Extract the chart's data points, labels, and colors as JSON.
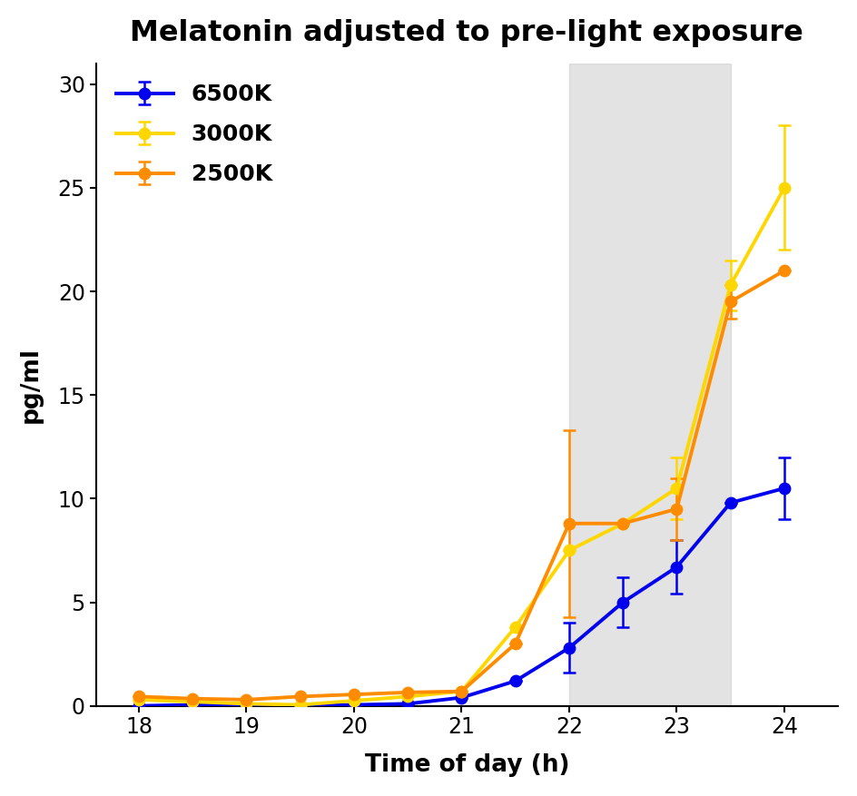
{
  "title": "Melatonin adjusted to pre-light exposure",
  "xlabel": "Time of day (h)",
  "ylabel": "pg/ml",
  "xlim": [
    17.6,
    24.5
  ],
  "ylim": [
    0,
    31
  ],
  "xticks": [
    18,
    19,
    20,
    21,
    22,
    23,
    24
  ],
  "yticks": [
    0,
    5,
    10,
    15,
    20,
    25,
    30
  ],
  "shaded_region": [
    22,
    23.5
  ],
  "series": {
    "6500K": {
      "color": "#0000EE",
      "x": [
        18,
        18.5,
        19,
        19.5,
        20,
        20.5,
        21,
        21.5,
        22,
        22.5,
        23,
        23.5,
        24
      ],
      "y": [
        0.0,
        0.05,
        0.05,
        0.0,
        0.05,
        0.1,
        0.4,
        1.2,
        2.8,
        5.0,
        6.7,
        9.8,
        10.5
      ],
      "yerr_lo": [
        0.0,
        0.0,
        0.0,
        0.0,
        0.0,
        0.0,
        0.0,
        0.0,
        1.2,
        1.2,
        1.3,
        0.0,
        1.5
      ],
      "yerr_hi": [
        0.0,
        0.0,
        0.0,
        0.0,
        0.0,
        0.0,
        0.0,
        0.0,
        1.2,
        1.2,
        1.3,
        0.0,
        1.5
      ]
    },
    "3000K": {
      "color": "#FFD700",
      "x": [
        18,
        18.5,
        19,
        19.5,
        20,
        20.5,
        21,
        21.5,
        22,
        22.5,
        23,
        23.5,
        24
      ],
      "y": [
        0.3,
        0.2,
        0.1,
        0.05,
        0.25,
        0.45,
        0.7,
        3.8,
        7.5,
        8.8,
        10.5,
        20.3,
        25.0
      ],
      "yerr_lo": [
        0.0,
        0.0,
        0.0,
        0.0,
        0.0,
        0.0,
        0.0,
        0.0,
        0.0,
        0.0,
        1.5,
        1.2,
        3.0
      ],
      "yerr_hi": [
        0.0,
        0.0,
        0.0,
        0.0,
        0.0,
        0.0,
        0.0,
        0.0,
        0.0,
        0.0,
        1.5,
        1.2,
        3.0
      ]
    },
    "2500K": {
      "color": "#FF8C00",
      "x": [
        18,
        18.5,
        19,
        19.5,
        20,
        20.5,
        21,
        21.5,
        22,
        22.5,
        23,
        23.5,
        24
      ],
      "y": [
        0.45,
        0.35,
        0.3,
        0.45,
        0.55,
        0.65,
        0.7,
        3.0,
        8.8,
        8.8,
        9.5,
        19.5,
        21.0
      ],
      "yerr_lo": [
        0.0,
        0.0,
        0.0,
        0.0,
        0.0,
        0.0,
        0.0,
        0.0,
        4.5,
        0.0,
        1.5,
        0.8,
        0.0
      ],
      "yerr_hi": [
        0.0,
        0.0,
        0.0,
        0.0,
        0.0,
        0.0,
        0.0,
        0.0,
        4.5,
        0.0,
        1.5,
        0.8,
        0.0
      ]
    }
  },
  "legend_order": [
    "6500K",
    "3000K",
    "2500K"
  ],
  "marker": "o",
  "markersize": 9,
  "linewidth": 2.8,
  "title_fontsize": 23,
  "label_fontsize": 19,
  "tick_fontsize": 17,
  "legend_fontsize": 18,
  "shaded_color": "#CCCCCC",
  "shaded_alpha": 0.55
}
